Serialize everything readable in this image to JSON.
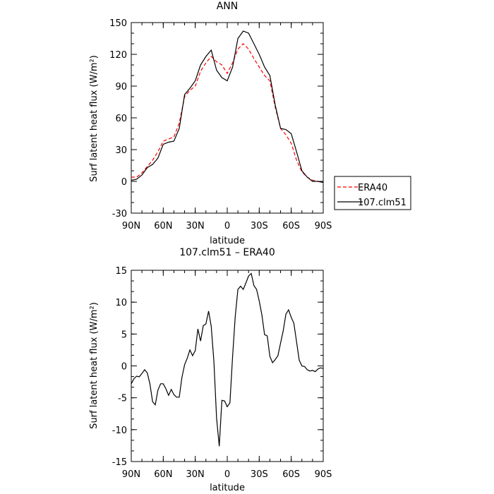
{
  "chart_data": [
    {
      "type": "line",
      "title": "ANN",
      "xlabel": "latitude",
      "ylabel": "Surf latent heat flux (W/m²)",
      "x_ticks": [
        {
          "value": 90,
          "label": "90N"
        },
        {
          "value": 60,
          "label": "60N"
        },
        {
          "value": 30,
          "label": "30N"
        },
        {
          "value": 0,
          "label": "0"
        },
        {
          "value": -30,
          "label": "30S"
        },
        {
          "value": -60,
          "label": "60S"
        },
        {
          "value": -90,
          "label": "90S"
        }
      ],
      "xlim": [
        90,
        -90
      ],
      "ylim": [
        -30,
        150
      ],
      "y_ticks": [
        -30,
        0,
        30,
        60,
        90,
        120,
        150
      ],
      "legend": "outside-right",
      "series": [
        {
          "name": "ERA40",
          "color": "#ff0000",
          "dash": "dashed",
          "x": [
            90,
            85,
            80,
            75,
            70,
            65,
            60,
            55,
            50,
            45,
            40,
            35,
            30,
            25,
            20,
            15,
            10,
            5,
            0,
            -5,
            -10,
            -15,
            -20,
            -25,
            -30,
            -35,
            -40,
            -45,
            -50,
            -55,
            -60,
            -65,
            -70,
            -75,
            -80,
            -85,
            -90
          ],
          "values": [
            4,
            4,
            8,
            14,
            20,
            28,
            38,
            40,
            42,
            55,
            80,
            86,
            90,
            104,
            112,
            118,
            113,
            110,
            102,
            112,
            125,
            130,
            125,
            116,
            108,
            100,
            95,
            70,
            50,
            44,
            36,
            20,
            9,
            4,
            1,
            0,
            -1
          ]
        },
        {
          "name": "107.clm51",
          "color": "#000000",
          "dash": "solid",
          "x": [
            90,
            85,
            80,
            75,
            70,
            65,
            60,
            55,
            50,
            45,
            40,
            35,
            30,
            25,
            20,
            15,
            10,
            5,
            0,
            -5,
            -10,
            -15,
            -20,
            -25,
            -30,
            -35,
            -40,
            -45,
            -50,
            -55,
            -60,
            -65,
            -70,
            -75,
            -80,
            -85,
            -90
          ],
          "values": [
            1,
            2,
            6,
            13,
            16,
            22,
            35,
            37,
            38,
            50,
            82,
            88,
            95,
            110,
            118,
            124,
            105,
            98,
            95,
            108,
            135,
            142,
            140,
            130,
            120,
            108,
            100,
            72,
            50,
            49,
            45,
            28,
            10,
            4,
            0,
            0,
            -1
          ]
        }
      ]
    },
    {
      "type": "line",
      "title": "107.clm51 – ERA40",
      "xlabel": "latitude",
      "ylabel": "Surf latent heat flux (W/m²)",
      "x_ticks": [
        {
          "value": 90,
          "label": "90N"
        },
        {
          "value": 60,
          "label": "60N"
        },
        {
          "value": 30,
          "label": "30N"
        },
        {
          "value": 0,
          "label": "0"
        },
        {
          "value": -30,
          "label": "30S"
        },
        {
          "value": -60,
          "label": "60S"
        },
        {
          "value": -90,
          "label": "90S"
        }
      ],
      "xlim": [
        90,
        -90
      ],
      "ylim": [
        -15,
        15
      ],
      "y_ticks": [
        -15,
        -10,
        -5,
        0,
        5,
        10,
        15
      ],
      "series": [
        {
          "color": "#000000",
          "dash": "solid",
          "x": [
            90,
            87.5,
            85,
            82.5,
            80,
            77.5,
            75,
            72.5,
            70,
            67.5,
            65,
            62.5,
            60,
            57.5,
            55,
            52.5,
            50,
            47.5,
            45,
            42.5,
            40,
            37.5,
            35,
            32.5,
            30,
            27.5,
            25,
            22.5,
            20,
            17.5,
            15,
            12.5,
            10,
            7.5,
            5,
            2.5,
            0,
            -2.5,
            -5,
            -7.5,
            -10,
            -12.5,
            -15,
            -17.5,
            -20,
            -22.5,
            -25,
            -27.5,
            -30,
            -32.5,
            -35,
            -37.5,
            -40,
            -42.5,
            -45,
            -47.5,
            -50,
            -52.5,
            -55,
            -57.5,
            -60,
            -62.5,
            -65,
            -67.5,
            -70,
            -72.5,
            -75,
            -77.5,
            -80,
            -82.5,
            -85,
            -87.5,
            -90
          ],
          "values": [
            -2.8,
            -2.0,
            -1.6,
            -1.7,
            -1.2,
            -0.6,
            -1.1,
            -2.8,
            -5.6,
            -6.1,
            -3.8,
            -2.8,
            -2.8,
            -3.6,
            -4.6,
            -3.7,
            -4.5,
            -4.9,
            -4.9,
            -1.8,
            0.2,
            1.2,
            2.5,
            1.6,
            2.4,
            5.8,
            3.9,
            6.3,
            6.6,
            8.6,
            6.2,
            0.7,
            -8.2,
            -12.6,
            -5.4,
            -5.5,
            -6.4,
            -5.8,
            1.5,
            7.7,
            12.0,
            12.5,
            12.0,
            13.0,
            14.1,
            14.5,
            12.6,
            12.0,
            10.2,
            8.0,
            4.9,
            4.7,
            1.5,
            0.5,
            1.0,
            1.6,
            3.6,
            5.5,
            8.1,
            8.8,
            7.6,
            6.7,
            3.8,
            0.9,
            0.0,
            -0.1,
            -0.6,
            -0.8,
            -0.7,
            -0.9,
            -0.5,
            -0.3,
            -0.4
          ]
        }
      ]
    }
  ]
}
